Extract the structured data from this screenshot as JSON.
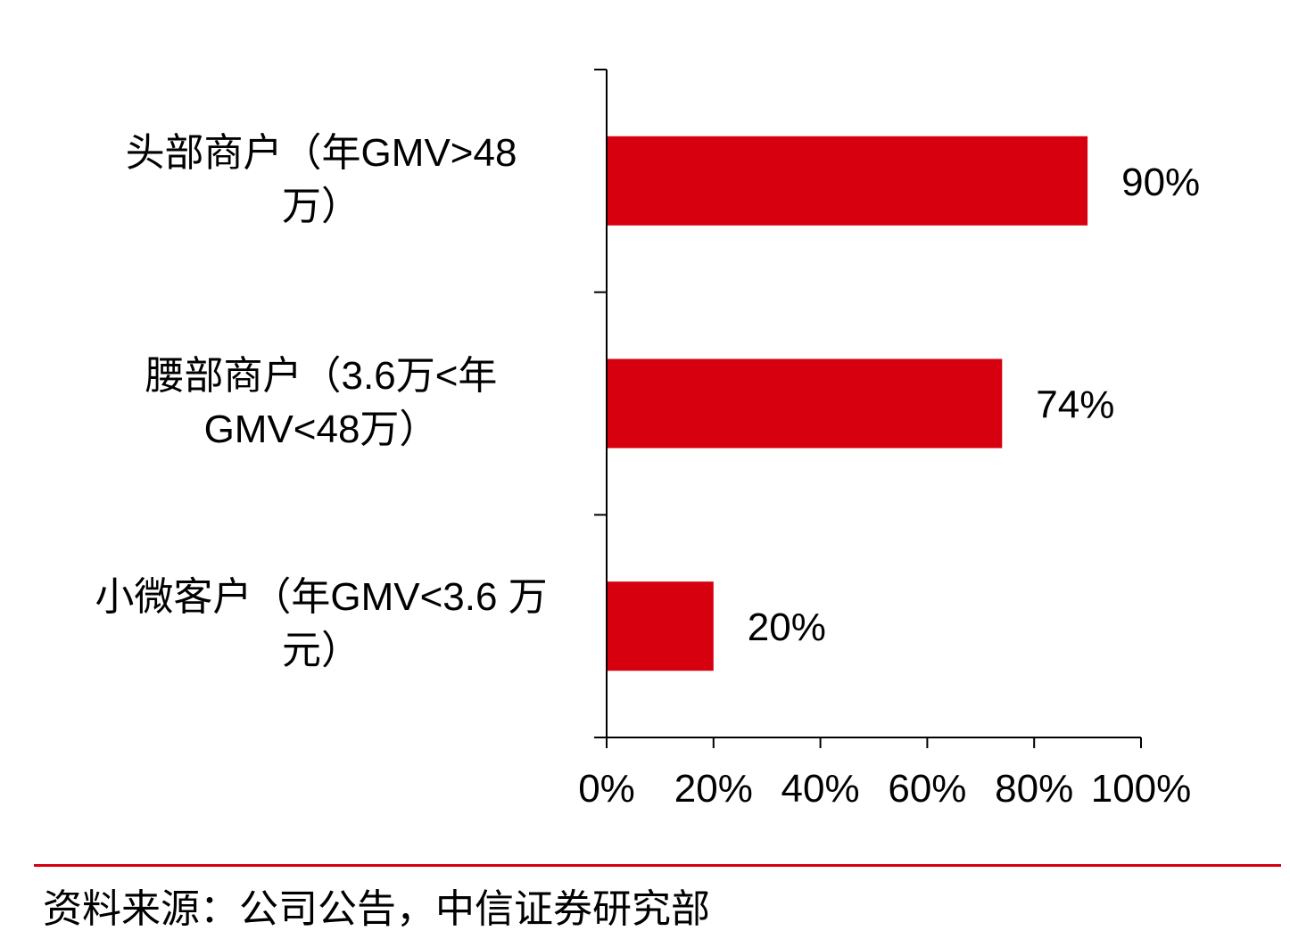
{
  "chart_data": {
    "type": "bar",
    "orientation": "horizontal",
    "categories": [
      "头部商户（年GMV>48\n万）",
      "腰部商户（3.6万<年\nGMV<48万）",
      "小微客户（年GMV<3.6 万\n元）"
    ],
    "series": [
      {
        "values": [
          90,
          74,
          20
        ],
        "color": "#d6000f"
      }
    ],
    "data_labels": [
      "90%",
      "74%",
      "20%"
    ],
    "xlim": [
      0,
      100
    ],
    "x_ticks": [
      0,
      20,
      40,
      60,
      80,
      100
    ],
    "x_tick_labels": [
      "0%",
      "20%",
      "40%",
      "60%",
      "80%",
      "100%"
    ],
    "title": "",
    "xlabel": "",
    "ylabel": "",
    "grid": false,
    "legend": "none"
  },
  "footer": {
    "source_text": "资料来源：公司公告，中信证券研究部",
    "divider_color": "#d6000f"
  }
}
